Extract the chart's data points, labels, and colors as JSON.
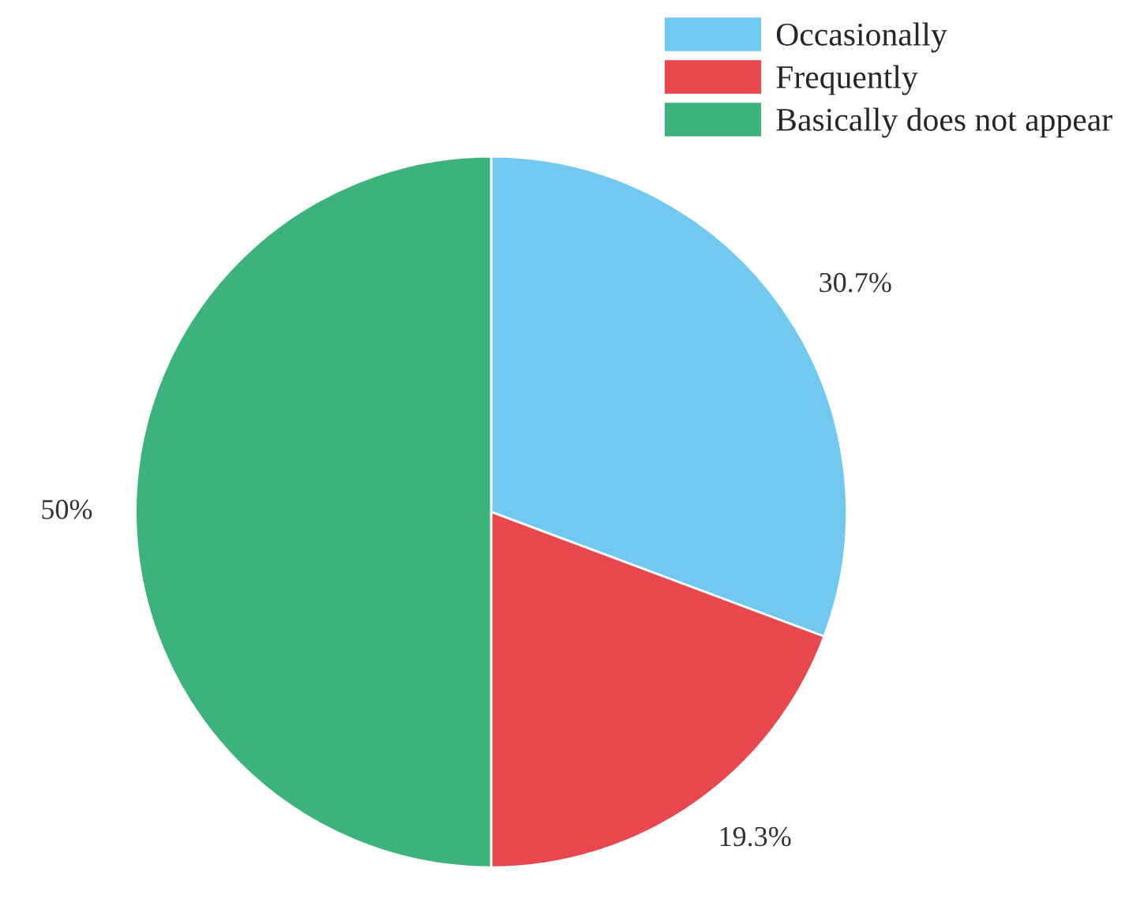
{
  "chart_data": {
    "type": "pie",
    "categories": [
      "Occasionally",
      "Frequently",
      "Basically does not appear"
    ],
    "values": [
      30.7,
      19.3,
      50
    ],
    "colors": [
      "#72c9ef",
      "#e8474d",
      "#3db37c"
    ],
    "value_labels": [
      "30.7%",
      "19.3%",
      "50%"
    ],
    "legend": "top right"
  }
}
